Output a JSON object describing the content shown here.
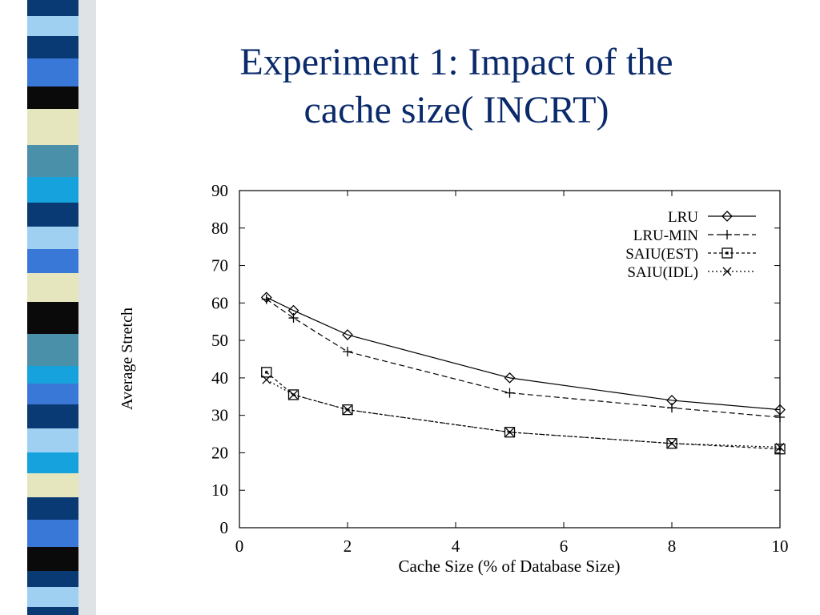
{
  "slide": {
    "title_line1": "Experiment 1: Impact of the",
    "title_line2": "cache size( INCRT)"
  },
  "colors": {
    "title": "#0a2a6b",
    "stripe_palette": [
      "#0a3a73",
      "#3a78d8",
      "#4a90a8",
      "#0a0a0a",
      "#e6e6be",
      "#9fd0f2",
      "#16a2dc",
      "#104a7e"
    ]
  },
  "chart_data": {
    "type": "line",
    "xlabel": "Cache Size (% of Database Size)",
    "ylabel": "Average Stretch",
    "xlim": [
      0,
      10
    ],
    "ylim": [
      0,
      90
    ],
    "xticks": [
      "0",
      "2",
      "4",
      "6",
      "8",
      "10"
    ],
    "yticks": [
      "0",
      "10",
      "20",
      "30",
      "40",
      "50",
      "60",
      "70",
      "80",
      "90"
    ],
    "x": [
      0.5,
      1,
      2,
      5,
      8,
      10
    ],
    "legend_position": "top-right",
    "grid": false,
    "series": [
      {
        "name": "LRU",
        "marker": "diamond",
        "values": [
          61.5,
          58,
          51.5,
          40,
          34,
          31.5
        ]
      },
      {
        "name": "LRU-MIN",
        "marker": "plus",
        "values": [
          61,
          56,
          47,
          36,
          32,
          29.5
        ]
      },
      {
        "name": "SAIU(EST)",
        "marker": "square",
        "values": [
          41.5,
          35.5,
          31.5,
          25.5,
          22.5,
          21
        ]
      },
      {
        "name": "SAIU(IDL)",
        "marker": "cross",
        "values": [
          39.5,
          35.5,
          31.5,
          25.5,
          22.5,
          21.5
        ]
      }
    ]
  }
}
